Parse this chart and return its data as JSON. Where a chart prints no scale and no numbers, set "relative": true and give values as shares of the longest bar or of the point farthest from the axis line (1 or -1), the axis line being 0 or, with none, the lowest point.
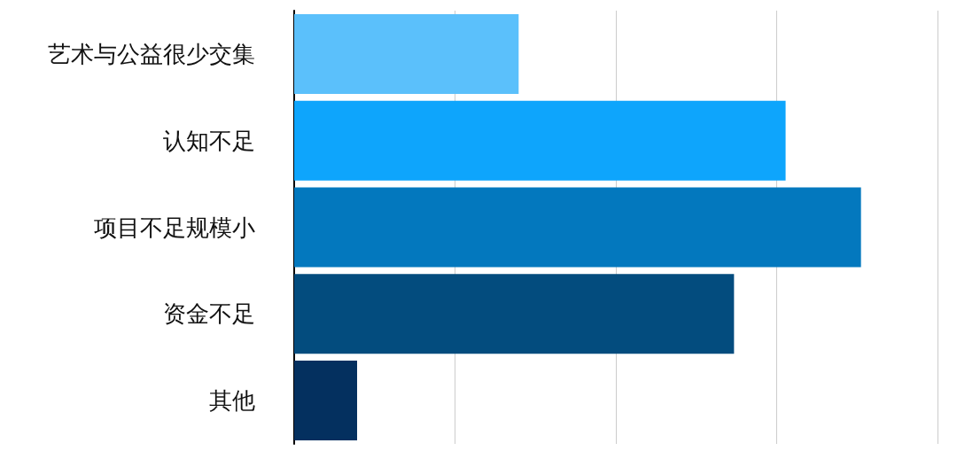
{
  "chart_data": {
    "type": "bar",
    "orientation": "horizontal",
    "relative": true,
    "grid": "x",
    "categories": [
      "艺术与公益很少交集",
      "认知不足",
      "项目不足规模小",
      "资金不足",
      "其他"
    ],
    "values": [
      0.396,
      0.867,
      1,
      0.776,
      0.111
    ],
    "colors": [
      "#5bc0fb",
      "#0ea5fc",
      "#0378be",
      "#034c7e",
      "#04305f"
    ]
  }
}
